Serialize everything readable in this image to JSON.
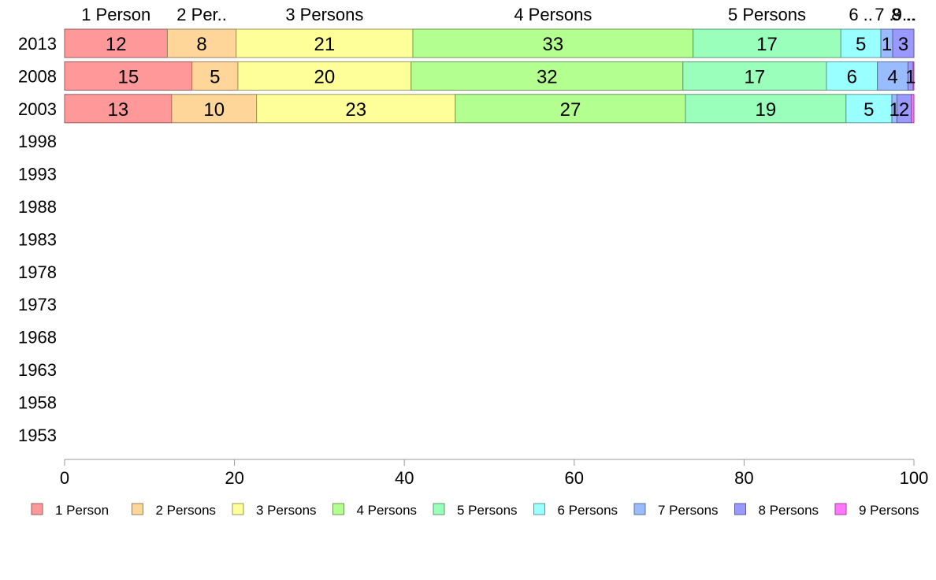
{
  "chart_data": {
    "type": "bar",
    "orientation": "horizontal",
    "stacked": true,
    "title": "",
    "xlabel": "",
    "ylabel": "",
    "xlim": [
      0,
      100
    ],
    "x_ticks": [
      "0",
      "20",
      "40",
      "60",
      "80",
      "100"
    ],
    "categories": [
      "2013",
      "2008",
      "2003",
      "1998",
      "1993",
      "1988",
      "1983",
      "1978",
      "1973",
      "1968",
      "1963",
      "1958",
      "1953"
    ],
    "segment_top_labels": [
      "1 Person",
      "2 Per..",
      "3 Persons",
      "4 Persons",
      "5 Persons",
      "6 ..",
      "7 ..",
      "8 ..",
      "9..."
    ],
    "legend_position": "bottom",
    "grid": false,
    "series": [
      {
        "name": "1 Person",
        "color": "#ff9999",
        "values": [
          12.1,
          15.0,
          12.6,
          null,
          null,
          null,
          null,
          null,
          null,
          null,
          null,
          null,
          null
        ],
        "labels": [
          "12",
          "15",
          "13",
          "",
          "",
          "",
          "",
          "",
          "",
          "",
          "",
          "",
          ""
        ]
      },
      {
        "name": "2 Persons",
        "color": "#ffd699",
        "values": [
          8.1,
          5.4,
          10.0,
          null,
          null,
          null,
          null,
          null,
          null,
          null,
          null,
          null,
          null
        ],
        "labels": [
          "8",
          "5",
          "10",
          "",
          "",
          "",
          "",
          "",
          "",
          "",
          "",
          "",
          ""
        ]
      },
      {
        "name": "3 Persons",
        "color": "#ffff99",
        "values": [
          20.8,
          20.4,
          23.4,
          null,
          null,
          null,
          null,
          null,
          null,
          null,
          null,
          null,
          null
        ],
        "labels": [
          "21",
          "20",
          "23",
          "",
          "",
          "",
          "",
          "",
          "",
          "",
          "",
          "",
          ""
        ]
      },
      {
        "name": "4 Persons",
        "color": "#b3ff8f",
        "values": [
          33.0,
          32.0,
          27.1,
          null,
          null,
          null,
          null,
          null,
          null,
          null,
          null,
          null,
          null
        ],
        "labels": [
          "33",
          "32",
          "27",
          "",
          "",
          "",
          "",
          "",
          "",
          "",
          "",
          "",
          ""
        ]
      },
      {
        "name": "5 Persons",
        "color": "#99ffbb",
        "values": [
          17.4,
          16.9,
          18.9,
          null,
          null,
          null,
          null,
          null,
          null,
          null,
          null,
          null,
          null
        ],
        "labels": [
          "17",
          "17",
          "19",
          "",
          "",
          "",
          "",
          "",
          "",
          "",
          "",
          "",
          ""
        ]
      },
      {
        "name": "6 Persons",
        "color": "#99ffff",
        "values": [
          4.7,
          6.0,
          5.4,
          null,
          null,
          null,
          null,
          null,
          null,
          null,
          null,
          null,
          null
        ],
        "labels": [
          "5",
          "6",
          "5",
          "",
          "",
          "",
          "",
          "",
          "",
          "",
          "",
          "",
          ""
        ]
      },
      {
        "name": "7 Persons",
        "color": "#99bbff",
        "values": [
          1.4,
          3.6,
          0.6,
          null,
          null,
          null,
          null,
          null,
          null,
          null,
          null,
          null,
          null
        ],
        "labels": [
          "1",
          "4",
          "1",
          "",
          "",
          "",
          "",
          "",
          "",
          "",
          "",
          "",
          ""
        ]
      },
      {
        "name": "8 Persons",
        "color": "#9999ff",
        "values": [
          2.5,
          0.6,
          1.7,
          null,
          null,
          null,
          null,
          null,
          null,
          null,
          null,
          null,
          null
        ],
        "labels": [
          "3",
          "1",
          "2",
          "",
          "",
          "",
          "",
          "",
          "",
          "",
          "",
          "",
          ""
        ]
      },
      {
        "name": "9 Persons",
        "color": "#ff77ff",
        "values": [
          0.0,
          0.1,
          0.3,
          null,
          null,
          null,
          null,
          null,
          null,
          null,
          null,
          null,
          null
        ],
        "labels": [
          "",
          "",
          "",
          "",
          "",
          "",
          "",
          "",
          "",
          "",
          "",
          "",
          ""
        ]
      }
    ]
  }
}
